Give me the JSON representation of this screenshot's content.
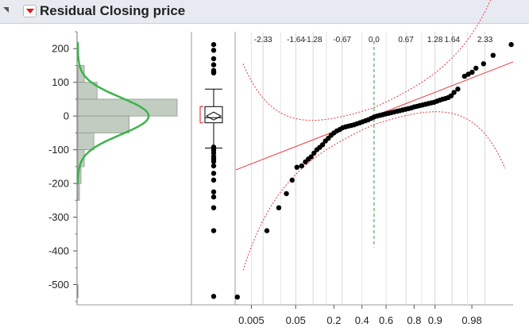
{
  "header": {
    "title": "Residual Closing price",
    "collapse_icon": "disclosure-triangle-icon",
    "menu_icon": "red-triangle-menu-icon"
  },
  "colors": {
    "hist_bar": "#c2cdc2",
    "density_curve": "#3cb34a",
    "ref_line": "#e8383d",
    "median_line": "#2e9a3e",
    "points": "#000000"
  },
  "chart_data": [
    {
      "type": "bar",
      "orientation": "horizontal",
      "ylim": [
        -560,
        250
      ],
      "y_ticks": [
        "200",
        "100",
        "0",
        "-100",
        "-200",
        "-300",
        "-400",
        "-500"
      ],
      "bins": [
        {
          "from": 100,
          "to": 150,
          "count": 2
        },
        {
          "from": 50,
          "to": 100,
          "count": 6
        },
        {
          "from": 0,
          "to": 50,
          "count": 31
        },
        {
          "from": -50,
          "to": 0,
          "count": 16
        },
        {
          "from": -100,
          "to": -50,
          "count": 5
        },
        {
          "from": -150,
          "to": -100,
          "count": 2
        },
        {
          "from": -200,
          "to": -150,
          "count": 1
        },
        {
          "from": -250,
          "to": -200,
          "count": 0.5
        }
      ],
      "normal_fit": {
        "mean": 0,
        "sd": 55
      }
    },
    {
      "type": "box",
      "median": -5,
      "q1": -20,
      "q3": 28,
      "whisker_low": -95,
      "whisker_high": 80,
      "mean": 0,
      "outliers": [
        212,
        195,
        170,
        152,
        135,
        128,
        130,
        -92,
        -96,
        -102,
        -110,
        -120,
        -128,
        -135,
        -148,
        -170,
        -190,
        -225,
        -240,
        -272,
        -340,
        -535
      ]
    },
    {
      "type": "scatter",
      "title": "",
      "xlabel": "",
      "top_axis_ticks": [
        "-2.33",
        "-1.64",
        "-1.28",
        "-0.67",
        "0.0",
        "0.67",
        "1.28",
        "1.64",
        "2.33"
      ],
      "top_axis_values": [
        -2.33,
        -1.64,
        -1.28,
        -0.67,
        0.0,
        0.67,
        1.28,
        1.64,
        2.33
      ],
      "bottom_axis_ticks": [
        "0.005",
        "0.05",
        "0.2",
        "0.4",
        "0.6",
        "0.8",
        "0.9",
        "0.98"
      ],
      "xlim": [
        -2.9,
        2.92
      ],
      "ylim": [
        -560,
        250
      ],
      "fit_line": {
        "intercept": 0,
        "slope": 55
      },
      "confidence_bands": true,
      "points": [
        [
          -2.87,
          -537
        ],
        [
          -2.25,
          -340
        ],
        [
          -2.0,
          -272
        ],
        [
          -1.84,
          -230
        ],
        [
          -1.72,
          -190
        ],
        [
          -1.62,
          -152
        ],
        [
          -1.52,
          -148
        ],
        [
          -1.44,
          -136
        ],
        [
          -1.38,
          -128
        ],
        [
          -1.32,
          -121
        ],
        [
          -1.26,
          -110
        ],
        [
          -1.2,
          -100
        ],
        [
          -1.14,
          -93
        ],
        [
          -1.08,
          -85
        ],
        [
          -1.02,
          -74
        ],
        [
          -0.96,
          -66
        ],
        [
          -0.9,
          -57
        ],
        [
          -0.84,
          -50
        ],
        [
          -0.78,
          -44
        ],
        [
          -0.72,
          -40
        ],
        [
          -0.66,
          -35
        ],
        [
          -0.6,
          -32
        ],
        [
          -0.54,
          -30
        ],
        [
          -0.48,
          -28
        ],
        [
          -0.42,
          -26
        ],
        [
          -0.36,
          -23
        ],
        [
          -0.3,
          -20
        ],
        [
          -0.24,
          -17
        ],
        [
          -0.18,
          -14
        ],
        [
          -0.12,
          -11
        ],
        [
          -0.06,
          -7
        ],
        [
          0.0,
          -3
        ],
        [
          0.06,
          0
        ],
        [
          0.12,
          2
        ],
        [
          0.18,
          4
        ],
        [
          0.24,
          6
        ],
        [
          0.3,
          8
        ],
        [
          0.36,
          10
        ],
        [
          0.42,
          12
        ],
        [
          0.48,
          14
        ],
        [
          0.54,
          16
        ],
        [
          0.6,
          18
        ],
        [
          0.66,
          20
        ],
        [
          0.72,
          22
        ],
        [
          0.78,
          24
        ],
        [
          0.84,
          27
        ],
        [
          0.9,
          29
        ],
        [
          0.96,
          31
        ],
        [
          1.02,
          33
        ],
        [
          1.08,
          35
        ],
        [
          1.14,
          37
        ],
        [
          1.2,
          39
        ],
        [
          1.26,
          41
        ],
        [
          1.32,
          44
        ],
        [
          1.38,
          47
        ],
        [
          1.44,
          50
        ],
        [
          1.5,
          52
        ],
        [
          1.56,
          55
        ],
        [
          1.62,
          60
        ],
        [
          1.68,
          70
        ],
        [
          1.76,
          80
        ],
        [
          1.9,
          118
        ],
        [
          1.98,
          124
        ],
        [
          2.06,
          130
        ],
        [
          2.14,
          142
        ],
        [
          2.3,
          155
        ],
        [
          2.5,
          180
        ],
        [
          2.88,
          212
        ]
      ]
    }
  ]
}
